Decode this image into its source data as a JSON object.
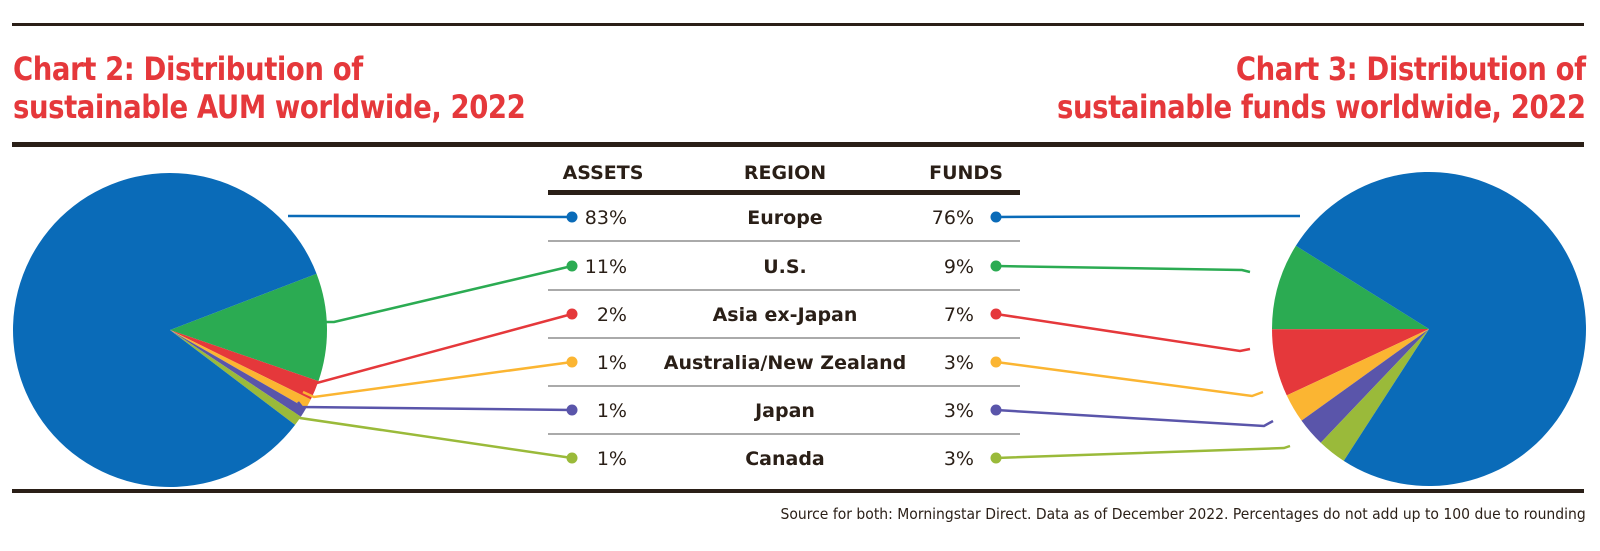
{
  "titles": {
    "left": {
      "line1": "Chart 2: Distribution of",
      "line2": "sustainable AUM worldwide, 2022"
    },
    "right": {
      "line1": "Chart 3: Distribution of",
      "line2": "sustainable funds worldwide, 2022"
    }
  },
  "table": {
    "headers": {
      "assets": "ASSETS",
      "region": "REGION",
      "funds": "FUNDS"
    },
    "rows": [
      {
        "region": "Europe",
        "assets": "83%",
        "funds": "76%",
        "color": "#0a6bb8"
      },
      {
        "region": "U.S.",
        "assets": "11%",
        "funds": "9%",
        "color": "#2bab52"
      },
      {
        "region": "Asia ex-Japan",
        "assets": "2%",
        "funds": "7%",
        "color": "#e5383b"
      },
      {
        "region": "Australia/New Zealand",
        "assets": "1%",
        "funds": "3%",
        "color": "#fbb532"
      },
      {
        "region": "Japan",
        "assets": "1%",
        "funds": "3%",
        "color": "#5a55aa"
      },
      {
        "region": "Canada",
        "assets": "1%",
        "funds": "3%",
        "color": "#9aba3a"
      }
    ]
  },
  "source": "Source for both: Morningstar Direct. Data as of December 2022. Percentages do not add up to 100 due to rounding",
  "chart_data": [
    {
      "type": "pie",
      "title": "Chart 2: Distribution of sustainable AUM worldwide, 2022",
      "categories": [
        "Europe",
        "U.S.",
        "Asia ex-Japan",
        "Australia/New Zealand",
        "Japan",
        "Canada"
      ],
      "values": [
        83,
        11,
        2,
        1,
        1,
        1
      ],
      "unit": "%",
      "colors": [
        "#0a6bb8",
        "#2bab52",
        "#e5383b",
        "#fbb532",
        "#5a55aa",
        "#9aba3a"
      ],
      "legend": "center-table"
    },
    {
      "type": "pie",
      "title": "Chart 3: Distribution of sustainable funds worldwide, 2022",
      "categories": [
        "Europe",
        "U.S.",
        "Asia ex-Japan",
        "Australia/New Zealand",
        "Japan",
        "Canada"
      ],
      "values": [
        76,
        9,
        7,
        3,
        3,
        3
      ],
      "unit": "%",
      "colors": [
        "#0a6bb8",
        "#2bab52",
        "#e5383b",
        "#fbb532",
        "#5a55aa",
        "#9aba3a"
      ],
      "legend": "center-table"
    }
  ]
}
